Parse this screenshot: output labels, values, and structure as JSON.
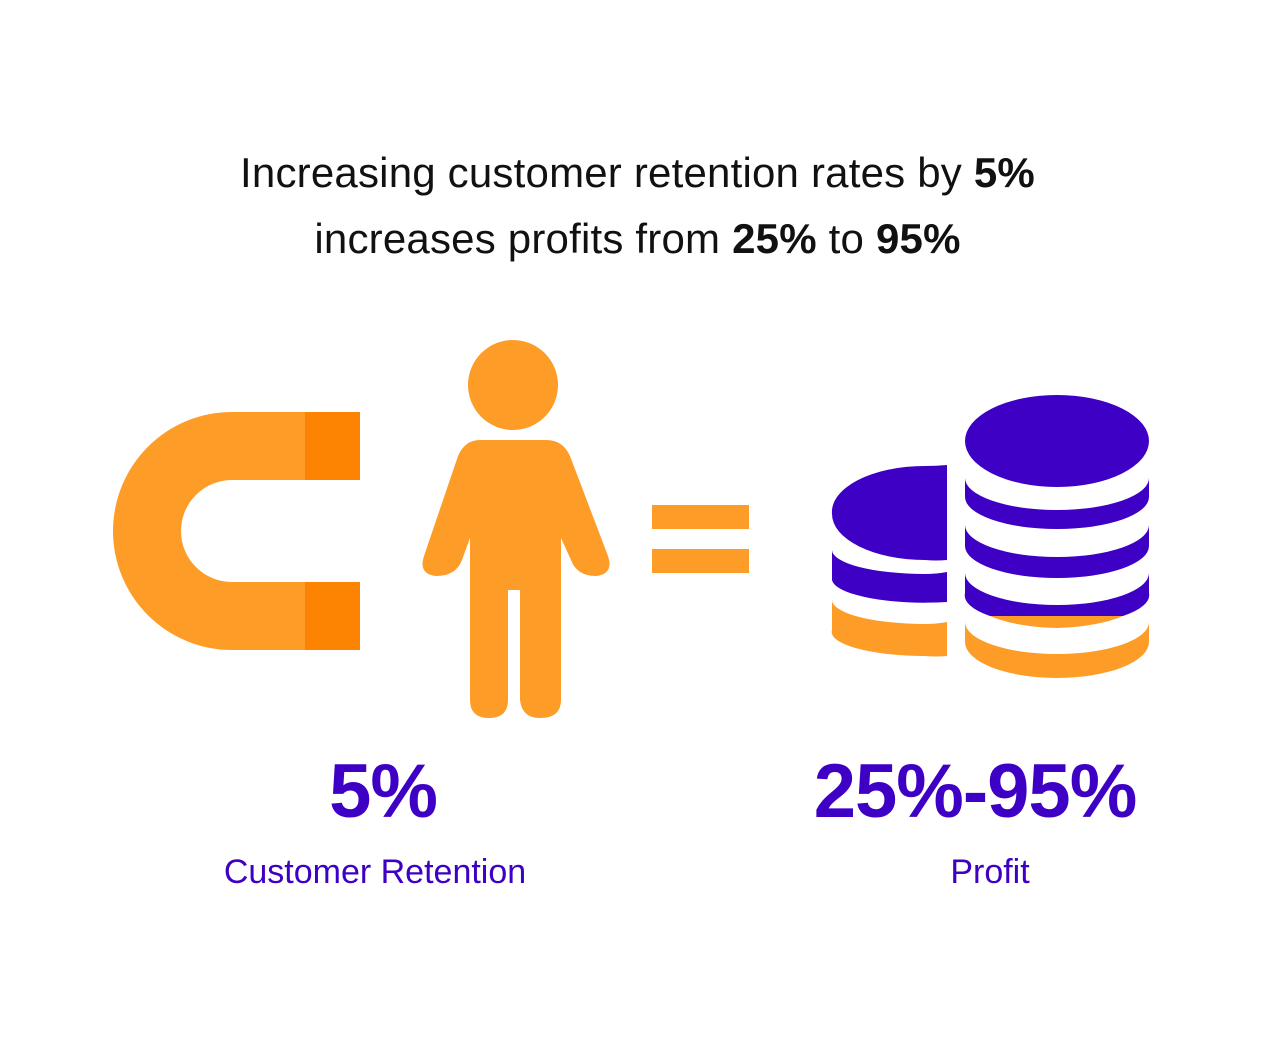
{
  "headline": {
    "line1_text": "Increasing customer retention rates by ",
    "line1_bold": "5%",
    "line2_text_a": "increases profits from ",
    "line2_bold_a": "25%",
    "line2_text_b": " to ",
    "line2_bold_b": "95%"
  },
  "stats": {
    "retention": {
      "value": "5%",
      "label": "Customer Retention"
    },
    "profit": {
      "value": "25%-95%",
      "label": "Profit"
    }
  },
  "icons": {
    "magnet": "magnet-icon",
    "person": "person-icon",
    "equals": "equals-icon",
    "coins": "coins-stack-icon"
  },
  "colors": {
    "orange": "#fd9d28",
    "orange_dark": "#fd8402",
    "purple": "#3d00c4",
    "text": "#111111"
  }
}
